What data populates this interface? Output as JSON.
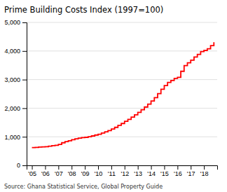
{
  "chart_data": {
    "type": "line",
    "title": "Prime Building Costs Index (1997=100)",
    "annotations": [
      "Source: Ghana Statistical Service, Global Property Guide"
    ],
    "color": "#ff0000",
    "line_style": "step",
    "grid": true,
    "x": [
      2005.0,
      2005.25,
      2005.5,
      2005.75,
      2006.0,
      2006.25,
      2006.5,
      2006.75,
      2007.0,
      2007.25,
      2007.5,
      2007.75,
      2008.0,
      2008.25,
      2008.5,
      2008.75,
      2009.0,
      2009.25,
      2009.5,
      2009.75,
      2010.0,
      2010.25,
      2010.5,
      2010.75,
      2011.0,
      2011.25,
      2011.5,
      2011.75,
      2012.0,
      2012.25,
      2012.5,
      2012.75,
      2013.0,
      2013.25,
      2013.5,
      2013.75,
      2014.0,
      2014.25,
      2014.5,
      2014.75,
      2015.0,
      2015.25,
      2015.5,
      2015.75,
      2016.0,
      2016.25,
      2016.5,
      2016.75,
      2017.0,
      2017.25,
      2017.5,
      2017.75,
      2018.0,
      2018.25,
      2018.5,
      2018.75
    ],
    "values": [
      620,
      630,
      640,
      645,
      655,
      670,
      690,
      700,
      730,
      790,
      830,
      860,
      900,
      930,
      955,
      970,
      980,
      1000,
      1030,
      1060,
      1090,
      1130,
      1175,
      1215,
      1270,
      1330,
      1400,
      1465,
      1540,
      1610,
      1690,
      1770,
      1855,
      1945,
      2040,
      2140,
      2250,
      2370,
      2510,
      2660,
      2790,
      2900,
      2970,
      3040,
      3080,
      3290,
      3490,
      3590,
      3680,
      3790,
      3880,
      3980,
      4020,
      4080,
      4190,
      4310
    ],
    "xlim": [
      2004.6,
      2019.0
    ],
    "xticks": [
      {
        "value": 2005,
        "label": "'05"
      },
      {
        "value": 2006,
        "label": "'06"
      },
      {
        "value": 2007,
        "label": "'07"
      },
      {
        "value": 2008,
        "label": "'08"
      },
      {
        "value": 2009,
        "label": "'09"
      },
      {
        "value": 2010,
        "label": "'10"
      },
      {
        "value": 2011,
        "label": "'11"
      },
      {
        "value": 2012,
        "label": "'12"
      },
      {
        "value": 2013,
        "label": "'13"
      },
      {
        "value": 2014,
        "label": "'14"
      },
      {
        "value": 2015,
        "label": "'15"
      },
      {
        "value": 2016,
        "label": "'16"
      },
      {
        "value": 2017,
        "label": "'17"
      },
      {
        "value": 2018,
        "label": "'18"
      }
    ],
    "ylim": [
      0,
      5000
    ],
    "yticks": [
      0,
      {
        "value": 1000,
        "label": "1,000"
      },
      {
        "value": 2000,
        "label": "2,000"
      },
      {
        "value": 3000,
        "label": "3,000"
      },
      {
        "value": 4000,
        "label": "4,000"
      },
      {
        "value": 5000,
        "label": "5,000"
      }
    ]
  }
}
